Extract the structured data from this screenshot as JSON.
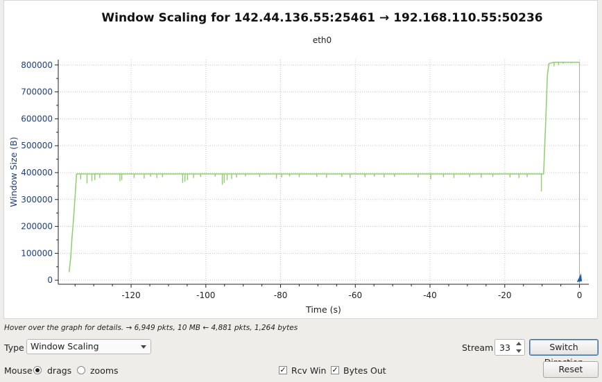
{
  "chart_data": {
    "type": "line",
    "title": "Window Scaling for 142.44.136.55:25461 → 192.168.110.55:50236",
    "subtitle": "eth0",
    "xlabel": "Time (s)",
    "ylabel": "Window Size (B)",
    "xlim": [
      -139.5,
      2.5
    ],
    "ylim": [
      -15000,
      820000
    ],
    "x_ticks": [
      -120,
      -100,
      -80,
      -60,
      -40,
      -20,
      0
    ],
    "x_tick_labels": [
      "-120",
      "-100",
      "-80",
      "-60",
      "-40",
      "-20",
      "0"
    ],
    "y_ticks": [
      0,
      100000,
      200000,
      300000,
      400000,
      500000,
      600000,
      700000,
      800000
    ],
    "y_tick_labels": [
      "0",
      "100000",
      "200000",
      "300000",
      "400000",
      "500000",
      "600000",
      "700000",
      "800000"
    ],
    "grid": true,
    "series": [
      {
        "color": "#8fce6c",
        "points": [
          [
            -136.6,
            30000
          ],
          [
            -136.2,
            80000
          ],
          [
            -135.8,
            160000
          ],
          [
            -135.4,
            230000
          ],
          [
            -135.0,
            310000
          ],
          [
            -134.6,
            395000
          ],
          [
            -10.0,
            395000
          ],
          [
            -9.6,
            395000
          ],
          [
            -9.0,
            600000
          ],
          [
            -8.6,
            760000
          ],
          [
            -8.2,
            805000
          ],
          [
            -7.0,
            810000
          ],
          [
            -5.0,
            810000
          ],
          [
            0.0,
            810000
          ]
        ],
        "dips": [
          [
            -133.5,
            375000
          ],
          [
            -131.8,
            360000
          ],
          [
            -130.5,
            368000
          ],
          [
            -129.7,
            372000
          ],
          [
            -128.4,
            380000
          ],
          [
            -123.0,
            368000
          ],
          [
            -122.5,
            372000
          ],
          [
            -119.2,
            380000
          ],
          [
            -116.5,
            378000
          ],
          [
            -114.8,
            385000
          ],
          [
            -113.1,
            380000
          ],
          [
            -111.6,
            383000
          ],
          [
            -106.2,
            362000
          ],
          [
            -105.6,
            366000
          ],
          [
            -104.9,
            372000
          ],
          [
            -103.3,
            380000
          ],
          [
            -101.4,
            384000
          ],
          [
            -97.5,
            385000
          ],
          [
            -95.6,
            355000
          ],
          [
            -95.1,
            362000
          ],
          [
            -94.3,
            372000
          ],
          [
            -93.1,
            377000
          ],
          [
            -91.8,
            382000
          ],
          [
            -89.4,
            386000
          ],
          [
            -85.6,
            384000
          ],
          [
            -81.1,
            378000
          ],
          [
            -79.7,
            382000
          ],
          [
            -77.6,
            386000
          ],
          [
            -75.0,
            383000
          ],
          [
            -70.3,
            384000
          ],
          [
            -67.7,
            381000
          ],
          [
            -63.6,
            384000
          ],
          [
            -61.4,
            380000
          ],
          [
            -57.4,
            383000
          ],
          [
            -54.9,
            385000
          ],
          [
            -52.3,
            382000
          ],
          [
            -49.5,
            384000
          ],
          [
            -43.2,
            382000
          ],
          [
            -39.8,
            375000
          ],
          [
            -36.4,
            383000
          ],
          [
            -33.6,
            380000
          ],
          [
            -29.4,
            383000
          ],
          [
            -26.3,
            381000
          ],
          [
            -23.2,
            384000
          ],
          [
            -18.6,
            382000
          ],
          [
            -16.2,
            380000
          ],
          [
            -14.0,
            383000
          ],
          [
            -10.2,
            330000
          ],
          [
            -6.8,
            795000
          ],
          [
            -5.6,
            800000
          ],
          [
            -4.4,
            805000
          ],
          [
            -2.2,
            806000
          ]
        ]
      }
    ]
  },
  "status": {
    "text": "Hover over the graph for details. → 6,949 pkts, 10 MB ← 4,881 pkts, 1,264 bytes"
  },
  "controls": {
    "type_label": "Type",
    "type_value": "Window Scaling",
    "stream_label": "Stream",
    "stream_value": "33",
    "switch_direction": "Switch Direction",
    "mouse_label": "Mouse",
    "drags_label": "drags",
    "zooms_label": "zooms",
    "rcv_win_label": "Rcv Win",
    "bytes_out_label": "Bytes Out",
    "reset": "Reset",
    "checkmark": "✓"
  }
}
